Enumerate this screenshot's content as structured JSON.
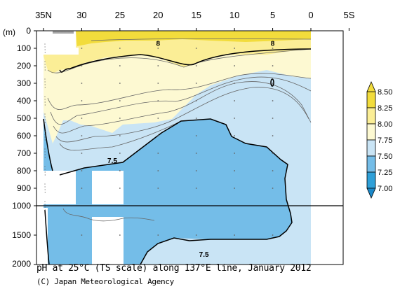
{
  "chart_data": {
    "type": "heatmap",
    "title": "pH at 25°C (TS scale) along 137°E line, January 2012",
    "credit": "(C) Japan Meteorological Agency",
    "x_axis": {
      "tick_labels": [
        "35N",
        "30",
        "25",
        "20",
        "15",
        "10",
        "5",
        "0",
        "5S"
      ],
      "tick_values_deg_north": [
        35,
        30,
        25,
        20,
        15,
        10,
        5,
        0,
        -5
      ],
      "range_deg_north": [
        35,
        -5
      ]
    },
    "y_axis": {
      "unit_label": "(m)",
      "upper_panel_ticks": [
        "0",
        "100",
        "200",
        "300",
        "400",
        "500",
        "600",
        "700",
        "800",
        "900",
        "1000"
      ],
      "lower_panel_ticks": [
        "1500",
        "2000"
      ],
      "upper_panel_range_m": [
        0,
        1000
      ],
      "lower_panel_range_m": [
        1000,
        2000
      ]
    },
    "colorbar": {
      "tick_labels": [
        "8.50",
        "8.25",
        "8.00",
        "7.75",
        "7.50",
        "7.25",
        "7.00"
      ],
      "levels": [
        8.5,
        8.25,
        8.0,
        7.75,
        7.5,
        7.25,
        7.0
      ],
      "bins": [
        {
          "range": [
            8.25,
            8.5
          ],
          "color": "#f2dc3c"
        },
        {
          "range": [
            8.0,
            8.25
          ],
          "color": "#fbee96"
        },
        {
          "range": [
            7.75,
            8.0
          ],
          "color": "#fdf9d2"
        },
        {
          "range": [
            7.5,
            7.75
          ],
          "color": "#c9e4f5"
        },
        {
          "range": [
            7.25,
            7.5
          ],
          "color": "#74bde8"
        },
        {
          "range": [
            7.0,
            7.25
          ],
          "color": "#2fa0d8"
        }
      ]
    },
    "contour_labels": [
      {
        "text": "8",
        "lat": 20,
        "depth_m": 70
      },
      {
        "text": "8",
        "lat": 5,
        "depth_m": 70
      },
      {
        "text": "7.5",
        "lat": 26,
        "depth_m": 740
      },
      {
        "text": "7.5",
        "lat": 14,
        "depth_m": 1820
      }
    ]
  }
}
